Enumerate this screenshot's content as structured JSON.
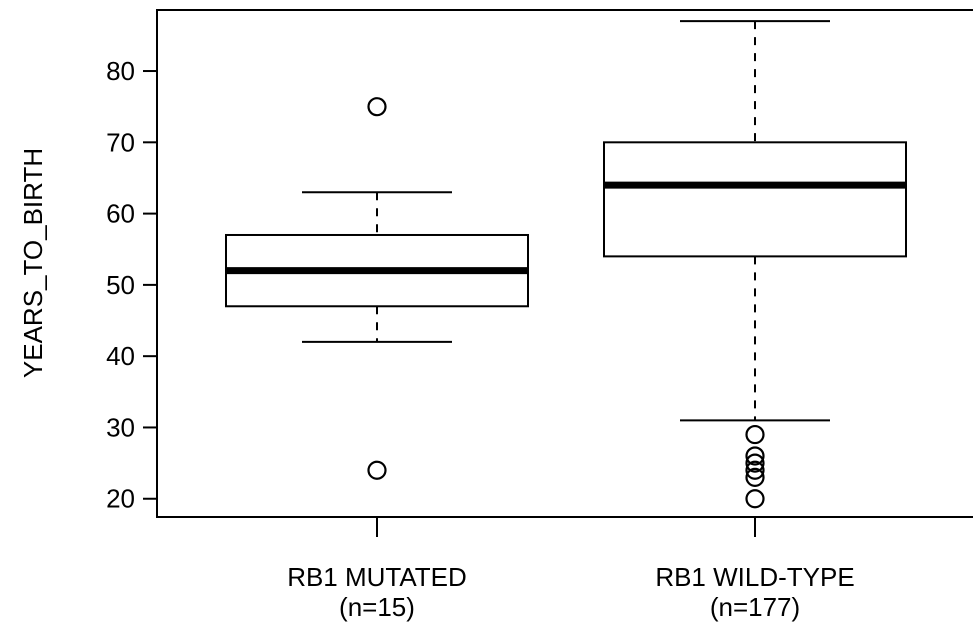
{
  "chart_data": {
    "type": "box",
    "ylabel": "YEARS_TO_BIRTH",
    "ylim": [
      18,
      88
    ],
    "yticks": [
      20,
      30,
      40,
      50,
      60,
      70,
      80
    ],
    "frame": "box-open-right",
    "grid": false,
    "groups": [
      {
        "label": "RB1 MUTATED",
        "count_label": "(n=15)",
        "whisker_low": 42,
        "q1": 47,
        "median": 52,
        "q3": 57,
        "whisker_high": 63,
        "outliers": [
          24,
          75
        ]
      },
      {
        "label": "RB1 WILD-TYPE",
        "count_label": "(n=177)",
        "whisker_low": 31,
        "q1": 54,
        "median": 64,
        "q3": 70,
        "whisker_high": 87,
        "outliers": [
          20,
          23,
          24,
          25,
          26,
          29
        ]
      }
    ]
  }
}
